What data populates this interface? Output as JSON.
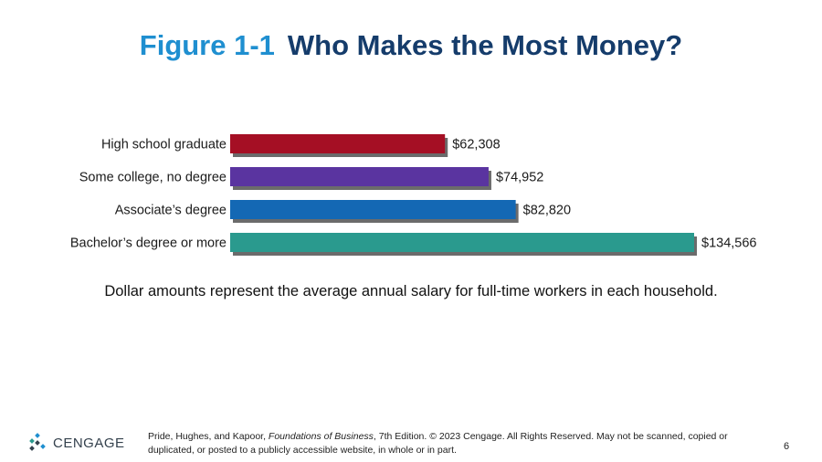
{
  "header": {
    "figure_label": "Figure 1-1",
    "title": "Who Makes the Most Money?"
  },
  "chart_data": {
    "type": "bar",
    "orientation": "horizontal",
    "title": "Who Makes the Most Money?",
    "categories": [
      "High school graduate",
      "Some college, no degree",
      "Associate’s degree",
      "Bachelor’s degree or more"
    ],
    "values": [
      62308,
      74952,
      82820,
      134566
    ],
    "value_labels": [
      "$62,308",
      "$74,952",
      "$82,820",
      "$134,566"
    ],
    "colors": [
      "#a50f24",
      "#5a34a0",
      "#1468b4",
      "#2a9a8e"
    ],
    "xlim": [
      0,
      134566
    ],
    "grid": false,
    "legend": "none"
  },
  "caption": "Dollar amounts represent the average annual salary for full-time workers in each household.",
  "footer": {
    "logo_text": "CENGAGE",
    "citation_prefix": "Pride, Hughes, and Kapoor, ",
    "citation_book": "Foundations of Business",
    "citation_suffix": ", 7th Edition. © 2023 Cengage. All Rights Reserved. May not be scanned, copied or duplicated, or posted to a publicly accessible website, in whole or in part.",
    "page_number": "6"
  }
}
